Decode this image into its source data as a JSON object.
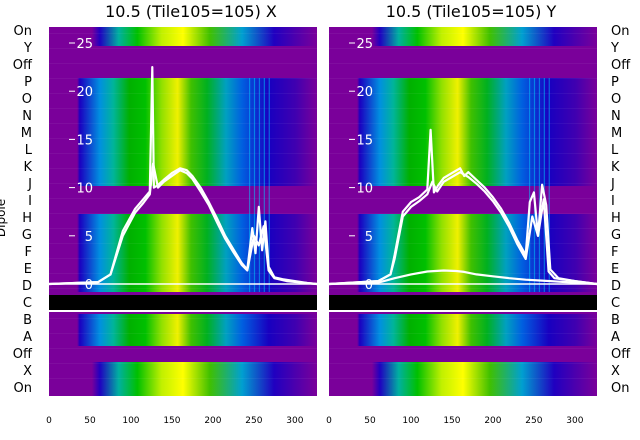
{
  "chart_data": {
    "type": "line",
    "panels": [
      {
        "id": "x",
        "title": "10.5 (Tile105=105) X"
      },
      {
        "id": "y",
        "title": "10.5 (Tile105=105) Y"
      }
    ],
    "ylabel": "Dipole",
    "x_ticks": [
      0,
      50,
      100,
      150,
      200,
      250,
      300
    ],
    "xlim": [
      0,
      327
    ],
    "y_ticks": [
      0,
      5,
      10,
      15,
      20,
      25
    ],
    "ylim": [
      -10.5,
      27
    ],
    "row_labels": [
      "On",
      "Y",
      "Off",
      "P",
      "O",
      "N",
      "M",
      "L",
      "K",
      "J",
      "I",
      "H",
      "G",
      "F",
      "E",
      "D",
      "C",
      "B",
      "A",
      "Off",
      "X",
      "On"
    ],
    "series": [
      {
        "panel": "x",
        "x": [
          0,
          60,
          75,
          90,
          105,
          115,
          123,
          126,
          128,
          132,
          140,
          150,
          160,
          168,
          175,
          185,
          195,
          205,
          215,
          225,
          235,
          242,
          248,
          252,
          256,
          260,
          264,
          268,
          275,
          285,
          300,
          315,
          327
        ],
        "y": [
          0,
          0.2,
          1,
          5.5,
          7.8,
          8.8,
          9.6,
          22.5,
          10,
          10.2,
          10.8,
          11.5,
          12,
          11.8,
          11.2,
          10,
          8.5,
          6.8,
          5,
          3.6,
          2.2,
          1.5,
          5.8,
          3.2,
          8,
          3.5,
          6.5,
          1.8,
          0.7,
          0.5,
          0.3,
          0.1,
          0
        ]
      },
      {
        "panel": "x",
        "x": [
          0,
          60,
          75,
          90,
          105,
          115,
          123,
          127,
          133,
          140,
          150,
          160,
          168,
          175,
          185,
          195,
          205,
          215,
          225,
          235,
          242,
          250,
          256,
          262,
          268,
          275,
          290,
          327
        ],
        "y": [
          0,
          0.2,
          1,
          5,
          7.4,
          8.4,
          9.3,
          12.5,
          10,
          10.6,
          11.2,
          11.8,
          11.5,
          10.9,
          9.6,
          8.2,
          6.4,
          4.7,
          3.3,
          2,
          1.4,
          5,
          4,
          6,
          1.4,
          0.6,
          0.3,
          0
        ]
      },
      {
        "panel": "y",
        "x": [
          0,
          60,
          75,
          80,
          90,
          100,
          110,
          120,
          124,
          128,
          133,
          140,
          150,
          160,
          165,
          170,
          180,
          190,
          200,
          210,
          220,
          230,
          240,
          245,
          250,
          255,
          260,
          265,
          270,
          280,
          300,
          327
        ],
        "y": [
          0,
          0.3,
          1,
          3,
          7.5,
          8.5,
          9,
          9.8,
          16,
          9.5,
          10.2,
          11,
          11.5,
          12,
          11.2,
          11.6,
          10.8,
          10,
          9,
          7.8,
          6.3,
          4.5,
          3,
          8.5,
          9.5,
          5,
          10.3,
          8.2,
          1.5,
          0.6,
          0.3,
          0
        ]
      },
      {
        "panel": "y",
        "x": [
          0,
          60,
          75,
          80,
          90,
          100,
          110,
          120,
          126,
          132,
          140,
          150,
          160,
          170,
          180,
          190,
          200,
          210,
          220,
          230,
          240,
          248,
          255,
          262,
          268,
          275,
          300,
          327
        ],
        "y": [
          0,
          0.3,
          1,
          2.6,
          7,
          8,
          8.6,
          9.3,
          10.6,
          9.6,
          10.6,
          11.1,
          11.6,
          11.1,
          10.4,
          9.6,
          8.6,
          7.4,
          5.9,
          4.1,
          2.6,
          7,
          5,
          8.8,
          1.3,
          0.6,
          0.3,
          0
        ]
      },
      {
        "panel": "y",
        "x": [
          0,
          60,
          80,
          100,
          120,
          140,
          155,
          165,
          180,
          200,
          220,
          240,
          260,
          280,
          300,
          327
        ],
        "y": [
          0,
          0.15,
          0.6,
          1,
          1.3,
          1.4,
          1.35,
          1.25,
          1,
          0.8,
          0.6,
          0.45,
          0.35,
          0.25,
          0.15,
          0
        ]
      }
    ]
  }
}
